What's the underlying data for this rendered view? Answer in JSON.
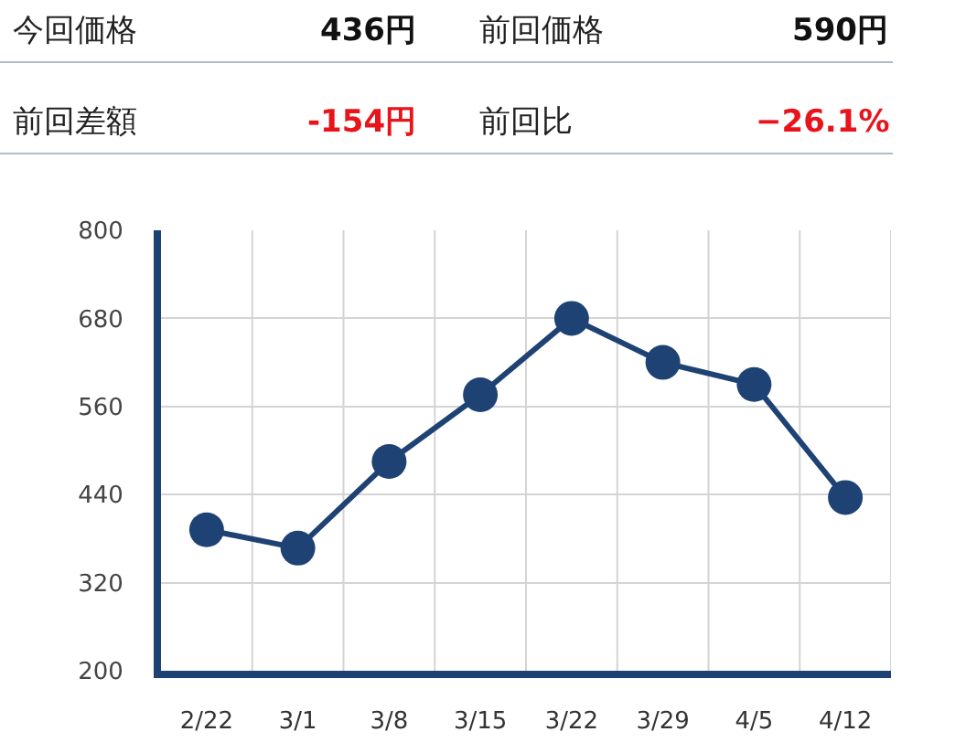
{
  "chart_data": [
    {
      "type": "other",
      "annotations": [
        "今回価格",
        "436円",
        "前回価格",
        "590円",
        "前回差額",
        "-154円",
        "前回比",
        "−26.1%"
      ]
    },
    {
      "type": "line",
      "categories": [
        "2/22",
        "3/1",
        "3/8",
        "3/15",
        "3/22",
        "3/29",
        "4/5",
        "4/12"
      ],
      "series": [
        {
          "color": "#1e4273",
          "values": [
            392,
            367,
            485,
            576,
            680,
            620,
            590,
            436
          ]
        }
      ],
      "ylim": [
        200,
        800
      ],
      "yticks": [
        200,
        320,
        440,
        560,
        680,
        800
      ],
      "grid": true,
      "marker": "circle",
      "line_style": "solid"
    }
  ]
}
